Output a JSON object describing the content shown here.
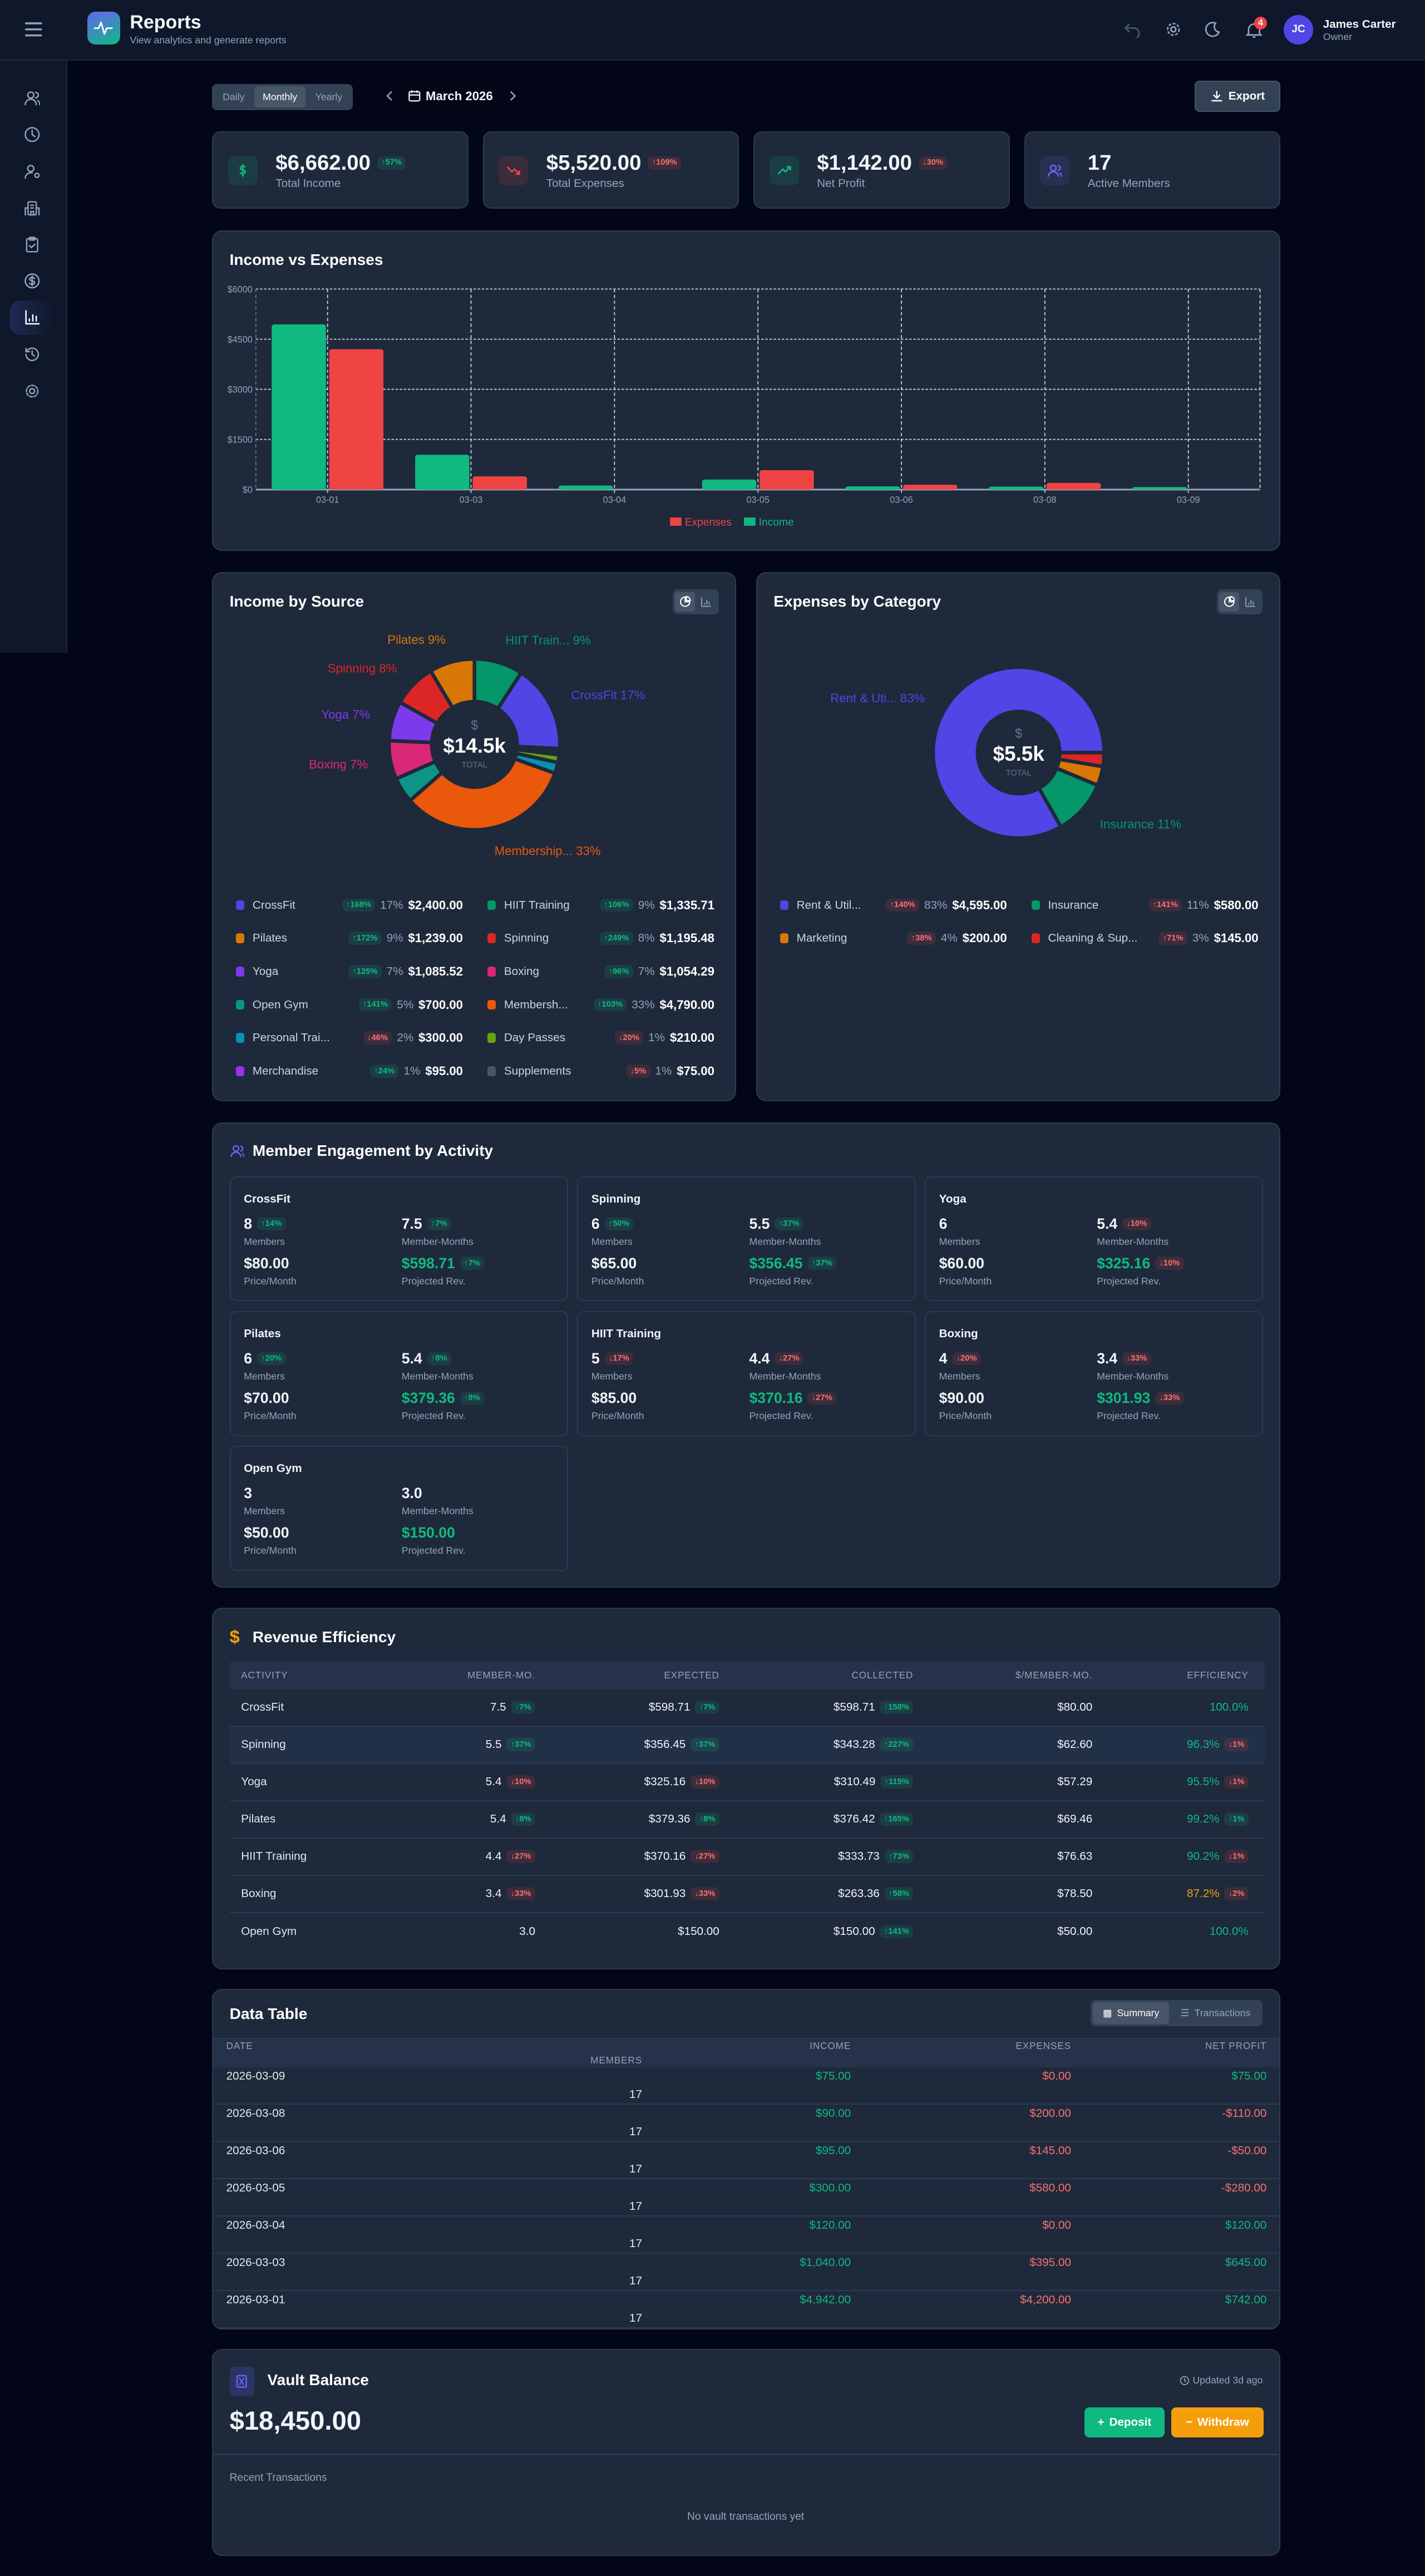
{
  "header": {
    "title": "Reports",
    "subtitle": "View analytics and generate reports",
    "notifications": "4",
    "user": {
      "initials": "JC",
      "name": "James Carter",
      "role": "Owner"
    },
    "accent": "#4f46e5"
  },
  "sidebar": {
    "items": [
      {
        "icon": "users-icon"
      },
      {
        "icon": "clock-icon"
      },
      {
        "icon": "user-cog-icon"
      },
      {
        "icon": "building-icon"
      },
      {
        "icon": "clipboard-check-icon"
      },
      {
        "icon": "dollar-circle-icon"
      },
      {
        "icon": "bar-chart-icon",
        "active": true
      },
      {
        "icon": "history-icon"
      },
      {
        "icon": "settings-icon"
      }
    ]
  },
  "controls": {
    "periods": [
      "Daily",
      "Monthly",
      "Yearly"
    ],
    "selected_period": "Monthly",
    "date": "March 2026",
    "export_label": "Export"
  },
  "stats": [
    {
      "value": "$6,662.00",
      "label": "Total Income",
      "icon": "dollar-icon",
      "color": "#10b981",
      "badge": {
        "dir": "up",
        "text": "57%",
        "tone": "green"
      }
    },
    {
      "value": "$5,520.00",
      "label": "Total Expenses",
      "icon": "trending-down-icon",
      "color": "#ef4444",
      "badge": {
        "dir": "up",
        "text": "109%",
        "tone": "red"
      }
    },
    {
      "value": "$1,142.00",
      "label": "Net Profit",
      "icon": "trending-up-icon",
      "color": "#10b981",
      "badge": {
        "dir": "down",
        "text": "30%",
        "tone": "red"
      }
    },
    {
      "value": "17",
      "label": "Active Members",
      "icon": "users-icon",
      "color": "#6366f1"
    }
  ],
  "chart_data": [
    {
      "type": "bar",
      "title": "Income vs Expenses",
      "categories": [
        "03-01",
        "03-03",
        "03-04",
        "03-05",
        "03-06",
        "03-08",
        "03-09"
      ],
      "series": [
        {
          "name": "Income",
          "color": "#10b981",
          "values": [
            4942,
            1040,
            120,
            300,
            95,
            90,
            75
          ]
        },
        {
          "name": "Expenses",
          "color": "#ef4444",
          "values": [
            4200,
            395,
            0,
            580,
            145,
            200,
            0
          ]
        }
      ],
      "yticks": [
        "$0",
        "$1500",
        "$3000",
        "$4500",
        "$6000"
      ],
      "ylim": [
        0,
        6000
      ],
      "grid": true,
      "legend": "bottom",
      "legend_order": [
        "Expenses",
        "Income"
      ]
    },
    {
      "type": "pie",
      "title": "Income by Source",
      "center_symbol": "$",
      "center_value": "$14.5k",
      "center_label": "TOTAL",
      "slices": [
        {
          "name": "CrossFit",
          "value": 2400.0,
          "pct": "17%",
          "amount": "$2,400.00",
          "color": "#4f46e5",
          "change": {
            "dir": "up",
            "text": "168%",
            "tone": "green"
          },
          "pie_label": "CrossFit 17%"
        },
        {
          "name": "HIIT Training",
          "value": 1335.71,
          "pct": "9%",
          "amount": "$1,335.71",
          "color": "#059669",
          "change": {
            "dir": "up",
            "text": "106%",
            "tone": "green"
          },
          "pie_label": "HIIT Train... 9%"
        },
        {
          "name": "Pilates",
          "value": 1239.0,
          "pct": "9%",
          "amount": "$1,239.00",
          "color": "#d97706",
          "change": {
            "dir": "up",
            "text": "172%",
            "tone": "green"
          },
          "pie_label": "Pilates 9%"
        },
        {
          "name": "Spinning",
          "value": 1195.48,
          "pct": "8%",
          "amount": "$1,195.48",
          "color": "#dc2626",
          "change": {
            "dir": "up",
            "text": "249%",
            "tone": "green"
          },
          "pie_label": "Spinning 8%"
        },
        {
          "name": "Yoga",
          "value": 1085.52,
          "pct": "7%",
          "amount": "$1,085.52",
          "color": "#7c3aed",
          "change": {
            "dir": "up",
            "text": "125%",
            "tone": "green"
          },
          "pie_label": "Yoga 7%"
        },
        {
          "name": "Boxing",
          "value": 1054.29,
          "pct": "7%",
          "amount": "$1,054.29",
          "color": "#db2777",
          "change": {
            "dir": "up",
            "text": "96%",
            "tone": "green"
          },
          "pie_label": "Boxing 7%"
        },
        {
          "name": "Open Gym",
          "value": 700.0,
          "pct": "5%",
          "amount": "$700.00",
          "color": "#0d9488",
          "change": {
            "dir": "up",
            "text": "141%",
            "tone": "green"
          }
        },
        {
          "name": "Membersh...",
          "value": 4790.0,
          "pct": "33%",
          "amount": "$4,790.00",
          "color": "#ea580c",
          "change": {
            "dir": "up",
            "text": "103%",
            "tone": "green"
          },
          "pie_label": "Membership... 33%"
        },
        {
          "name": "Personal Trai...",
          "value": 300.0,
          "pct": "2%",
          "amount": "$300.00",
          "color": "#0891b2",
          "change": {
            "dir": "down",
            "text": "46%",
            "tone": "red"
          }
        },
        {
          "name": "Day Passes",
          "value": 210.0,
          "pct": "1%",
          "amount": "$210.00",
          "color": "#65a30d",
          "change": {
            "dir": "down",
            "text": "20%",
            "tone": "red"
          }
        },
        {
          "name": "Merchandise",
          "value": 95.0,
          "pct": "1%",
          "amount": "$95.00",
          "color": "#9333ea",
          "change": {
            "dir": "up",
            "text": "24%",
            "tone": "green"
          }
        },
        {
          "name": "Supplements",
          "value": 75.0,
          "pct": "1%",
          "amount": "$75.00",
          "color": "#475569",
          "change": {
            "dir": "down",
            "text": "5%",
            "tone": "red"
          }
        }
      ]
    },
    {
      "type": "pie",
      "title": "Expenses by Category",
      "center_symbol": "$",
      "center_value": "$5.5k",
      "center_label": "TOTAL",
      "slices": [
        {
          "name": "Rent & Util...",
          "value": 4595.0,
          "pct": "83%",
          "amount": "$4,595.00",
          "color": "#4f46e5",
          "change": {
            "dir": "up",
            "text": "140%",
            "tone": "red"
          },
          "pie_label": "Rent & Uti... 83%"
        },
        {
          "name": "Insurance",
          "value": 580.0,
          "pct": "11%",
          "amount": "$580.00",
          "color": "#059669",
          "change": {
            "dir": "up",
            "text": "141%",
            "tone": "red"
          },
          "pie_label": "Insurance 11%"
        },
        {
          "name": "Marketing",
          "value": 200.0,
          "pct": "4%",
          "amount": "$200.00",
          "color": "#d97706",
          "change": {
            "dir": "up",
            "text": "38%",
            "tone": "red"
          }
        },
        {
          "name": "Cleaning & Sup...",
          "value": 145.0,
          "pct": "3%",
          "amount": "$145.00",
          "color": "#dc2626",
          "change": {
            "dir": "up",
            "text": "71%",
            "tone": "red"
          }
        }
      ]
    }
  ],
  "engagement": {
    "title": "Member Engagement by Activity",
    "labels": {
      "members": "Members",
      "member_months": "Member-Months",
      "price": "Price/Month",
      "projected": "Projected Rev."
    },
    "activities": [
      {
        "name": "CrossFit",
        "members": "8",
        "members_badge": {
          "dir": "up",
          "text": "14%",
          "tone": "green"
        },
        "member_months": "7.5",
        "mm_badge": {
          "dir": "up",
          "text": "7%",
          "tone": "green"
        },
        "price": "$80.00",
        "projected": "$598.71",
        "proj_badge": {
          "dir": "up",
          "text": "7%",
          "tone": "green"
        }
      },
      {
        "name": "Spinning",
        "members": "6",
        "members_badge": {
          "dir": "up",
          "text": "50%",
          "tone": "green"
        },
        "member_months": "5.5",
        "mm_badge": {
          "dir": "up",
          "text": "37%",
          "tone": "green"
        },
        "price": "$65.00",
        "projected": "$356.45",
        "proj_badge": {
          "dir": "up",
          "text": "37%",
          "tone": "green"
        }
      },
      {
        "name": "Yoga",
        "members": "6",
        "member_months": "5.4",
        "mm_badge": {
          "dir": "down",
          "text": "10%",
          "tone": "red"
        },
        "price": "$60.00",
        "projected": "$325.16",
        "proj_badge": {
          "dir": "down",
          "text": "10%",
          "tone": "red"
        }
      },
      {
        "name": "Pilates",
        "members": "6",
        "members_badge": {
          "dir": "up",
          "text": "20%",
          "tone": "green"
        },
        "member_months": "5.4",
        "mm_badge": {
          "dir": "up",
          "text": "8%",
          "tone": "green"
        },
        "price": "$70.00",
        "projected": "$379.36",
        "proj_badge": {
          "dir": "up",
          "text": "8%",
          "tone": "green"
        }
      },
      {
        "name": "HIIT Training",
        "members": "5",
        "members_badge": {
          "dir": "down",
          "text": "17%",
          "tone": "red"
        },
        "member_months": "4.4",
        "mm_badge": {
          "dir": "down",
          "text": "27%",
          "tone": "red"
        },
        "price": "$85.00",
        "projected": "$370.16",
        "proj_badge": {
          "dir": "down",
          "text": "27%",
          "tone": "red"
        }
      },
      {
        "name": "Boxing",
        "members": "4",
        "members_badge": {
          "dir": "down",
          "text": "20%",
          "tone": "red"
        },
        "member_months": "3.4",
        "mm_badge": {
          "dir": "down",
          "text": "33%",
          "tone": "red"
        },
        "price": "$90.00",
        "projected": "$301.93",
        "proj_badge": {
          "dir": "down",
          "text": "33%",
          "tone": "red"
        }
      },
      {
        "name": "Open Gym",
        "members": "3",
        "member_months": "3.0",
        "price": "$50.00",
        "projected": "$150.00"
      }
    ]
  },
  "revenue_efficiency": {
    "title": "Revenue Efficiency",
    "columns": [
      "ACTIVITY",
      "MEMBER-MO.",
      "EXPECTED",
      "COLLECTED",
      "$/MEMBER-MO.",
      "EFFICIENCY"
    ],
    "rows": [
      {
        "activity": "CrossFit",
        "member_mo": "7.5",
        "mm_badge": {
          "dir": "up",
          "text": "7%",
          "tone": "green"
        },
        "expected": "$598.71",
        "exp_badge": {
          "dir": "up",
          "text": "7%",
          "tone": "green"
        },
        "collected": "$598.71",
        "col_badge": {
          "dir": "up",
          "text": "158%",
          "tone": "green"
        },
        "per_mm": "$80.00",
        "efficiency": "100.0%",
        "eff_tone": "green"
      },
      {
        "activity": "Spinning",
        "member_mo": "5.5",
        "mm_badge": {
          "dir": "up",
          "text": "37%",
          "tone": "green"
        },
        "expected": "$356.45",
        "exp_badge": {
          "dir": "up",
          "text": "37%",
          "tone": "green"
        },
        "collected": "$343.28",
        "col_badge": {
          "dir": "up",
          "text": "227%",
          "tone": "green"
        },
        "per_mm": "$62.60",
        "efficiency": "96.3%",
        "eff_tone": "green",
        "eff_badge": {
          "dir": "down",
          "text": "1%",
          "tone": "red"
        }
      },
      {
        "activity": "Yoga",
        "member_mo": "5.4",
        "mm_badge": {
          "dir": "down",
          "text": "10%",
          "tone": "red"
        },
        "expected": "$325.16",
        "exp_badge": {
          "dir": "down",
          "text": "10%",
          "tone": "red"
        },
        "collected": "$310.49",
        "col_badge": {
          "dir": "up",
          "text": "115%",
          "tone": "green"
        },
        "per_mm": "$57.29",
        "efficiency": "95.5%",
        "eff_tone": "green",
        "eff_badge": {
          "dir": "down",
          "text": "1%",
          "tone": "red"
        }
      },
      {
        "activity": "Pilates",
        "member_mo": "5.4",
        "mm_badge": {
          "dir": "up",
          "text": "8%",
          "tone": "green"
        },
        "expected": "$379.36",
        "exp_badge": {
          "dir": "up",
          "text": "8%",
          "tone": "green"
        },
        "collected": "$376.42",
        "col_badge": {
          "dir": "up",
          "text": "165%",
          "tone": "green"
        },
        "per_mm": "$69.46",
        "efficiency": "99.2%",
        "eff_tone": "green",
        "eff_badge": {
          "dir": "up",
          "text": "1%",
          "tone": "green"
        }
      },
      {
        "activity": "HIIT Training",
        "member_mo": "4.4",
        "mm_badge": {
          "dir": "down",
          "text": "27%",
          "tone": "red"
        },
        "expected": "$370.16",
        "exp_badge": {
          "dir": "down",
          "text": "27%",
          "tone": "red"
        },
        "collected": "$333.73",
        "col_badge": {
          "dir": "up",
          "text": "73%",
          "tone": "green"
        },
        "per_mm": "$76.63",
        "efficiency": "90.2%",
        "eff_tone": "green",
        "eff_badge": {
          "dir": "down",
          "text": "1%",
          "tone": "red"
        }
      },
      {
        "activity": "Boxing",
        "member_mo": "3.4",
        "mm_badge": {
          "dir": "down",
          "text": "33%",
          "tone": "red"
        },
        "expected": "$301.93",
        "exp_badge": {
          "dir": "down",
          "text": "33%",
          "tone": "red"
        },
        "collected": "$263.36",
        "col_badge": {
          "dir": "up",
          "text": "58%",
          "tone": "green"
        },
        "per_mm": "$78.50",
        "efficiency": "87.2%",
        "eff_tone": "orange",
        "eff_badge": {
          "dir": "down",
          "text": "2%",
          "tone": "red"
        }
      },
      {
        "activity": "Open Gym",
        "member_mo": "3.0",
        "expected": "$150.00",
        "collected": "$150.00",
        "col_badge": {
          "dir": "up",
          "text": "141%",
          "tone": "green"
        },
        "per_mm": "$50.00",
        "efficiency": "100.0%",
        "eff_tone": "green"
      }
    ]
  },
  "data_table": {
    "title": "Data Table",
    "views": [
      "Summary",
      "Transactions"
    ],
    "selected_view": "Summary",
    "columns": [
      "DATE",
      "INCOME",
      "EXPENSES",
      "NET PROFIT",
      "MEMBERS"
    ],
    "rows": [
      {
        "date": "2026-03-09",
        "income": "$75.00",
        "expenses": "$0.00",
        "net": "$75.00",
        "net_tone": "green",
        "members": "17"
      },
      {
        "date": "2026-03-08",
        "income": "$90.00",
        "expenses": "$200.00",
        "net": "-$110.00",
        "net_tone": "red",
        "members": "17"
      },
      {
        "date": "2026-03-06",
        "income": "$95.00",
        "expenses": "$145.00",
        "net": "-$50.00",
        "net_tone": "red",
        "members": "17"
      },
      {
        "date": "2026-03-05",
        "income": "$300.00",
        "expenses": "$580.00",
        "net": "-$280.00",
        "net_tone": "red",
        "members": "17"
      },
      {
        "date": "2026-03-04",
        "income": "$120.00",
        "expenses": "$0.00",
        "net": "$120.00",
        "net_tone": "green",
        "members": "17"
      },
      {
        "date": "2026-03-03",
        "income": "$1,040.00",
        "expenses": "$395.00",
        "net": "$645.00",
        "net_tone": "green",
        "members": "17"
      },
      {
        "date": "2026-03-01",
        "income": "$4,942.00",
        "expenses": "$4,200.00",
        "net": "$742.00",
        "net_tone": "green",
        "members": "17"
      }
    ]
  },
  "vault": {
    "title": "Vault Balance",
    "updated": "Updated 3d ago",
    "balance": "$18,450.00",
    "deposit_label": "Deposit",
    "withdraw_label": "Withdraw",
    "recent_title": "Recent Transactions",
    "empty_text": "No vault transactions yet"
  }
}
